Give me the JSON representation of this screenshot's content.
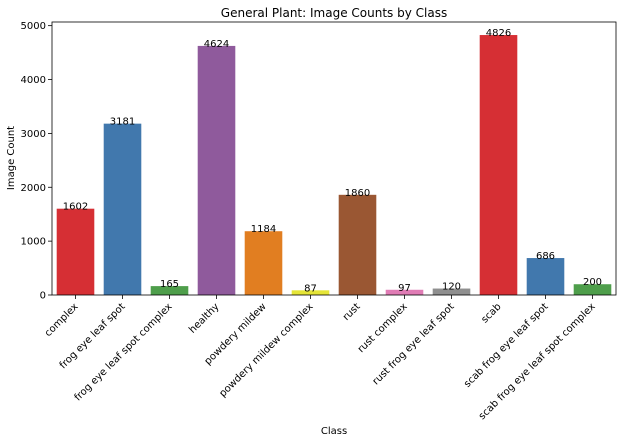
{
  "chart_data": {
    "type": "bar",
    "title": "General Plant: Image Counts by Class",
    "xlabel": "Class",
    "ylabel": "Image Count",
    "ylim": [
      0,
      5068
    ],
    "yticks": [
      0,
      1000,
      2000,
      3000,
      4000,
      5000
    ],
    "grid": false,
    "categories": [
      "complex",
      "frog eye leaf spot",
      "frog eye leaf spot complex",
      "healthy",
      "powdery mildew",
      "powdery mildew complex",
      "rust",
      "rust complex",
      "rust frog eye leaf spot",
      "scab",
      "scab frog eye leaf spot",
      "scab frog eye leaf spot complex"
    ],
    "values": [
      1602,
      3181,
      165,
      4624,
      1184,
      87,
      1860,
      97,
      120,
      4826,
      686,
      200
    ],
    "data_labels": [
      "1602",
      "3181",
      "165",
      "4624",
      "1184",
      "87",
      "1860",
      "97",
      "120",
      "4826",
      "686",
      "200"
    ],
    "colors": [
      "#d62f34",
      "#4178ad",
      "#4e9e4b",
      "#8f5a9c",
      "#e17e21",
      "#e5e537",
      "#9a5733",
      "#e07cb5",
      "#8f8f8f",
      "#d62f34",
      "#4178ad",
      "#4e9e4b"
    ]
  }
}
